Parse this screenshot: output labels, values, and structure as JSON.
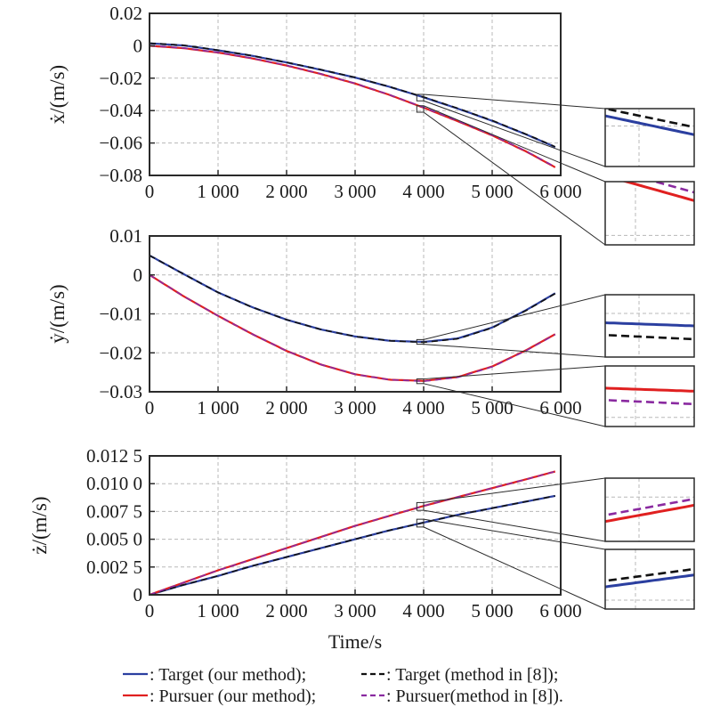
{
  "chart_data": {
    "type": "line",
    "xlabel": "Time/s",
    "colors": {
      "target_ours": "#2b3fa0",
      "target_ref": "#111111",
      "pursuer_ours": "#e02020",
      "pursuer_ref": "#8a2aa0"
    },
    "legend": {
      "placement": "bottom",
      "entries": [
        {
          "key": "target_ours",
          "style": "solid",
          "label": ": Target (our method);"
        },
        {
          "key": "target_ref",
          "style": "dashed",
          "label": ": Target (method in [8]);"
        },
        {
          "key": "pursuer_ours",
          "style": "solid",
          "label": ": Pursuer (our method);"
        },
        {
          "key": "pursuer_ref",
          "style": "dashed",
          "label": ": Pursuer(method in [8])."
        }
      ]
    },
    "x": [
      0,
      500,
      1000,
      1500,
      2000,
      2500,
      3000,
      3500,
      4000,
      4500,
      5000,
      5500,
      5920
    ],
    "xlim": [
      0,
      6000
    ],
    "xticks": [
      0,
      1000,
      2000,
      3000,
      4000,
      5000,
      6000
    ],
    "xtick_labels": [
      "0",
      "1 000",
      "2 000",
      "3 000",
      "4 000",
      "5 000",
      "6 000"
    ],
    "subplots": [
      {
        "ylabel": "ẋ/(m/s)",
        "ylim": [
          -0.08,
          0.02
        ],
        "yticks": [
          -0.08,
          -0.06,
          -0.04,
          -0.02,
          0,
          0.02
        ],
        "ytick_labels": [
          "−0.08",
          "−0.06",
          "−0.04",
          "−0.02",
          "0",
          "0.02"
        ],
        "grid": true,
        "series": [
          {
            "name": "Target (our method)",
            "key": "target_ours",
            "values": [
              0.0015,
              0.0002,
              -0.0028,
              -0.0062,
              -0.0103,
              -0.0148,
              -0.0196,
              -0.0253,
              -0.0318,
              -0.0388,
              -0.0463,
              -0.0548,
              -0.0625
            ]
          },
          {
            "name": "Target (method in [8])",
            "key": "target_ref",
            "values": [
              0.0016,
              0.0003,
              -0.0027,
              -0.0061,
              -0.0102,
              -0.0147,
              -0.0195,
              -0.0252,
              -0.0316,
              -0.0386,
              -0.0461,
              -0.0546,
              -0.0623
            ]
          },
          {
            "name": "Pursuer (our method)",
            "key": "pursuer_ours",
            "values": [
              0.0,
              -0.0015,
              -0.0042,
              -0.0078,
              -0.0122,
              -0.0174,
              -0.0233,
              -0.0303,
              -0.0382,
              -0.0466,
              -0.0553,
              -0.0653,
              -0.075
            ]
          },
          {
            "name": "Pursuer(method in [8])",
            "key": "pursuer_ref",
            "values": [
              0.0001,
              -0.0014,
              -0.0041,
              -0.0077,
              -0.0121,
              -0.0173,
              -0.0232,
              -0.0302,
              -0.038,
              -0.0464,
              -0.0551,
              -0.0651,
              -0.0748
            ]
          }
        ],
        "zoom_boxes": [
          {
            "x_range": [
              3900,
              4000
            ],
            "y_range": [
              -0.034,
              -0.03
            ],
            "series": [
              "target_ours",
              "target_ref"
            ]
          },
          {
            "x_range": [
              3900,
              4000
            ],
            "y_range": [
              -0.041,
              -0.037
            ],
            "series": [
              "pursuer_ours",
              "pursuer_ref"
            ]
          }
        ]
      },
      {
        "ylabel": "ẏ/(m/s)",
        "ylim": [
          -0.03,
          0.01
        ],
        "yticks": [
          -0.03,
          -0.02,
          -0.01,
          0,
          0.01
        ],
        "ytick_labels": [
          "−0.03",
          "−0.02",
          "−0.01",
          "0",
          "0.01"
        ],
        "grid": true,
        "series": [
          {
            "name": "Target (our method)",
            "key": "target_ours",
            "values": [
              0.005,
              0.0002,
              -0.0045,
              -0.0083,
              -0.0115,
              -0.014,
              -0.0158,
              -0.0169,
              -0.0172,
              -0.0163,
              -0.0135,
              -0.009,
              -0.0047
            ]
          },
          {
            "name": "Target (method in [8])",
            "key": "target_ref",
            "values": [
              0.005,
              0.0002,
              -0.0045,
              -0.0083,
              -0.0115,
              -0.014,
              -0.0158,
              -0.0169,
              -0.0173,
              -0.0164,
              -0.0136,
              -0.0091,
              -0.0048
            ]
          },
          {
            "name": "Pursuer (our method)",
            "key": "pursuer_ours",
            "values": [
              0.0,
              -0.0055,
              -0.0105,
              -0.0152,
              -0.0195,
              -0.023,
              -0.0255,
              -0.0269,
              -0.0272,
              -0.0262,
              -0.0235,
              -0.0193,
              -0.0152
            ]
          },
          {
            "name": "Pursuer(method in [8])",
            "key": "pursuer_ref",
            "values": [
              0.0,
              -0.0055,
              -0.0105,
              -0.0152,
              -0.0195,
              -0.023,
              -0.0255,
              -0.0269,
              -0.0273,
              -0.0263,
              -0.0236,
              -0.0194,
              -0.0153
            ]
          }
        ],
        "zoom_boxes": [
          {
            "x_range": [
              3900,
              4000
            ],
            "y_range": [
              -0.0178,
              -0.0166
            ],
            "series": [
              "target_ours",
              "target_ref"
            ]
          },
          {
            "x_range": [
              3900,
              4000
            ],
            "y_range": [
              -0.0279,
              -0.0267
            ],
            "series": [
              "pursuer_ours",
              "pursuer_ref"
            ]
          }
        ]
      },
      {
        "ylabel": "ż/(m/s)",
        "ylim": [
          0,
          0.0125
        ],
        "yticks": [
          0,
          0.0025,
          0.005,
          0.0075,
          0.01,
          0.0125
        ],
        "ytick_labels": [
          "0",
          "0.002 5",
          "0.005 0",
          "0.007 5",
          "0.010 0",
          "0.012 5"
        ],
        "grid": true,
        "series": [
          {
            "name": "Target (our method)",
            "key": "target_ours",
            "values": [
              0.0,
              0.0009,
              0.0017,
              0.0026,
              0.0034,
              0.0042,
              0.005,
              0.0058,
              0.0065,
              0.0072,
              0.0078,
              0.0084,
              0.0089
            ]
          },
          {
            "name": "Target (method in [8])",
            "key": "target_ref",
            "values": [
              0.0,
              0.0009,
              0.0017,
              0.0026,
              0.0034,
              0.0042,
              0.005,
              0.0058,
              0.0065,
              0.0072,
              0.0078,
              0.0084,
              0.0089
            ]
          },
          {
            "name": "Pursuer (our method)",
            "key": "pursuer_ours",
            "values": [
              0.0,
              0.0011,
              0.0022,
              0.0032,
              0.0042,
              0.0052,
              0.0062,
              0.0071,
              0.008,
              0.0088,
              0.0096,
              0.0104,
              0.0111
            ]
          },
          {
            "name": "Pursuer(method in [8])",
            "key": "pursuer_ref",
            "values": [
              0.0,
              0.0011,
              0.0022,
              0.0032,
              0.0042,
              0.0052,
              0.0062,
              0.0071,
              0.008,
              0.0088,
              0.0096,
              0.0104,
              0.0111
            ]
          }
        ],
        "zoom_boxes": [
          {
            "x_range": [
              3900,
              4000
            ],
            "y_range": [
              0.0076,
              0.0083
            ],
            "series": [
              "pursuer_ours",
              "pursuer_ref"
            ]
          },
          {
            "x_range": [
              3900,
              4000
            ],
            "y_range": [
              0.0061,
              0.0068
            ],
            "series": [
              "target_ours",
              "target_ref"
            ]
          }
        ]
      }
    ]
  }
}
